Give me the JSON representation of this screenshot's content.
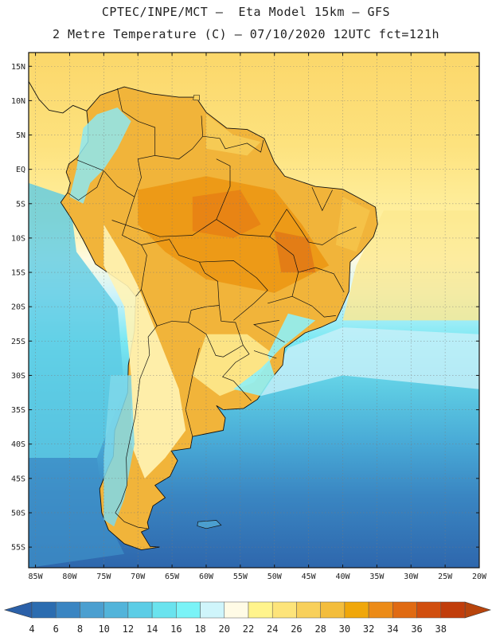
{
  "header": {
    "line1": "CPTEC/INPE/MCT –  Eta Model 15km – GFS",
    "line2": "2 Metre Temperature (C) – 07/10/2020 12UTC fct=121h"
  },
  "map": {
    "lat_range": [
      -58,
      17
    ],
    "lon_range": [
      -86,
      -20
    ],
    "lat_ticks": [
      {
        "value": 15,
        "label": "15N"
      },
      {
        "value": 10,
        "label": "10N"
      },
      {
        "value": 5,
        "label": "5N"
      },
      {
        "value": 0,
        "label": "EQ"
      },
      {
        "value": -5,
        "label": "5S"
      },
      {
        "value": -10,
        "label": "10S"
      },
      {
        "value": -15,
        "label": "15S"
      },
      {
        "value": -20,
        "label": "20S"
      },
      {
        "value": -25,
        "label": "25S"
      },
      {
        "value": -30,
        "label": "30S"
      },
      {
        "value": -35,
        "label": "35S"
      },
      {
        "value": -40,
        "label": "40S"
      },
      {
        "value": -45,
        "label": "45S"
      },
      {
        "value": -50,
        "label": "50S"
      },
      {
        "value": -55,
        "label": "55S"
      }
    ],
    "lon_ticks": [
      {
        "value": -85,
        "label": "85W"
      },
      {
        "value": -80,
        "label": "80W"
      },
      {
        "value": -75,
        "label": "75W"
      },
      {
        "value": -70,
        "label": "70W"
      },
      {
        "value": -65,
        "label": "65W"
      },
      {
        "value": -60,
        "label": "60W"
      },
      {
        "value": -55,
        "label": "55W"
      },
      {
        "value": -50,
        "label": "50W"
      },
      {
        "value": -45,
        "label": "45W"
      },
      {
        "value": -40,
        "label": "40W"
      },
      {
        "value": -35,
        "label": "35W"
      },
      {
        "value": -30,
        "label": "30W"
      },
      {
        "value": -25,
        "label": "25W"
      },
      {
        "value": -20,
        "label": "20W"
      }
    ],
    "grid": true
  },
  "colorbar": {
    "labels": [
      "4",
      "6",
      "8",
      "10",
      "12",
      "14",
      "16",
      "18",
      "20",
      "22",
      "24",
      "26",
      "28",
      "30",
      "32",
      "34",
      "36",
      "38"
    ],
    "colors": [
      "#2b6cb0",
      "#3a85c2",
      "#4b9fd0",
      "#52b4da",
      "#5ccde6",
      "#6ae3ee",
      "#7af3f7",
      "#cff5fb",
      "#fffbe6",
      "#fff48c",
      "#fde47a",
      "#f8d05b",
      "#f3bd3c",
      "#f0a70a",
      "#ec8b17",
      "#e06a12",
      "#d14e0e",
      "#c13d0b"
    ],
    "low_color": "#2b60a8",
    "high_color": "#b8440c"
  }
}
